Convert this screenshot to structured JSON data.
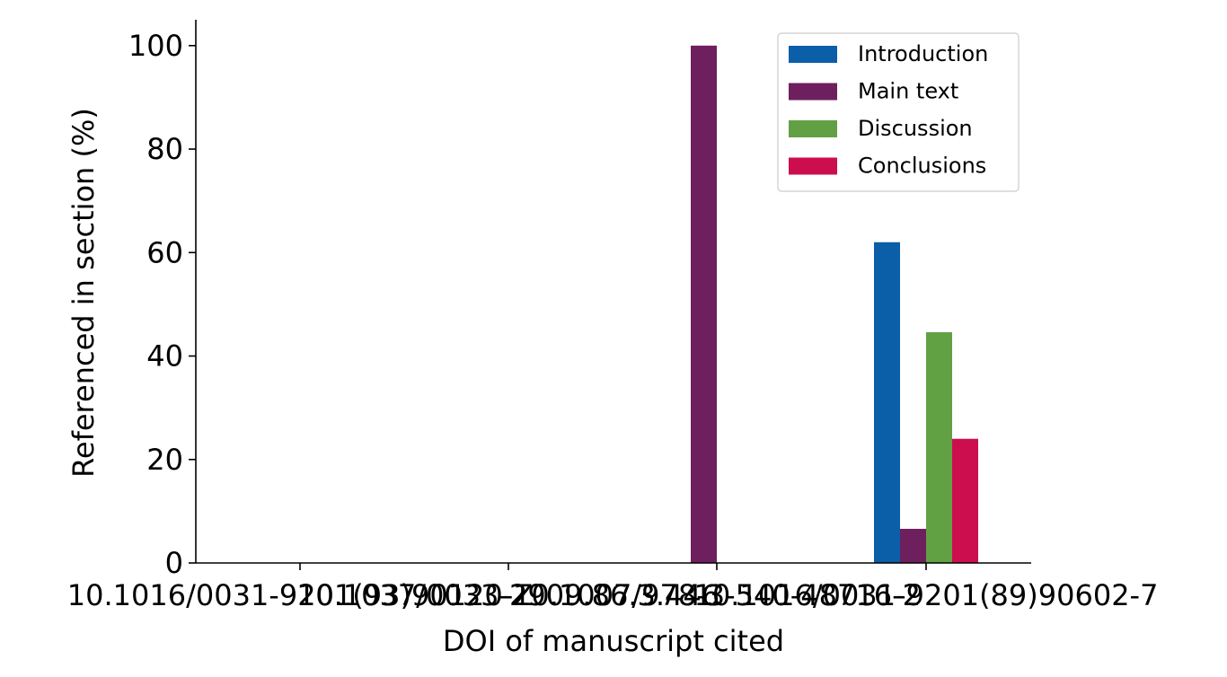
{
  "chart_data": {
    "type": "bar",
    "categories": [
      "10.1016/0031-9201(93)90120-Z",
      "10.1037/0033-2909.86.3.446",
      "10.1007/978-3-540-48716-2",
      "10.1016/0031-9201(89)90602-7"
    ],
    "category_labels_note": "",
    "series": [
      {
        "name": "Introduction",
        "color": "#0b5ea8",
        "values": [
          0,
          0,
          0,
          62
        ]
      },
      {
        "name": "Main text",
        "color": "#6e1f5d",
        "values": [
          0,
          0,
          100,
          6.6
        ]
      },
      {
        "name": "Discussion",
        "color": "#62a044",
        "values": [
          0,
          0,
          0,
          44.6
        ]
      },
      {
        "name": "Conclusions",
        "color": "#cc0e4e",
        "values": [
          0,
          0,
          0,
          24
        ]
      }
    ],
    "title": "",
    "xlabel": "DOI of manuscript cited",
    "ylabel": "Referenced in section (%)",
    "ylim": [
      0,
      105
    ],
    "yticks": [
      0,
      20,
      40,
      60,
      80,
      100
    ],
    "grid": false,
    "legend_position": "top-right"
  }
}
